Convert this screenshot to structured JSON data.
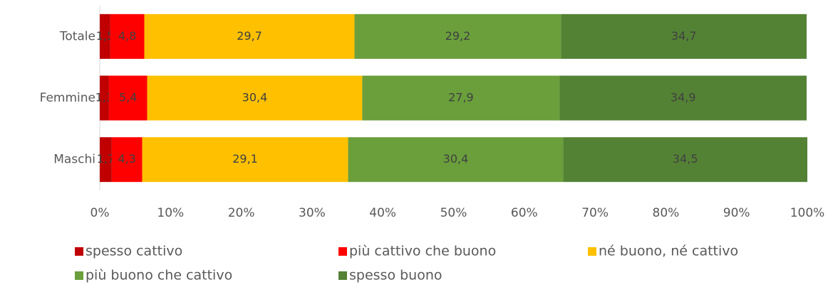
{
  "chart_data": {
    "type": "stacked_barh",
    "categories": [
      "Totale",
      "Femmine",
      "Maschi"
    ],
    "series": [
      {
        "name": "spesso cattivo",
        "color": "#c00000",
        "values": [
          1.5,
          1.3,
          1.7
        ],
        "value_labels": [
          "1,5",
          "1,3",
          "1,7"
        ]
      },
      {
        "name": "più cattivo che buono",
        "color": "#ff0000",
        "values": [
          4.8,
          5.4,
          4.3
        ],
        "value_labels": [
          "4,8",
          "5,4",
          "4,3"
        ]
      },
      {
        "name": "né buono, né cattivo",
        "color": "#ffc000",
        "values": [
          29.7,
          30.4,
          29.1
        ],
        "value_labels": [
          "29,7",
          "30,4",
          "29,1"
        ]
      },
      {
        "name": "più buono che cattivo",
        "color": "#6a9f3c",
        "values": [
          29.2,
          27.9,
          30.4
        ],
        "value_labels": [
          "29,2",
          "27,9",
          "30,4"
        ]
      },
      {
        "name": "spesso buono",
        "color": "#548235",
        "values": [
          34.7,
          34.9,
          34.5
        ],
        "value_labels": [
          "34,7",
          "34,9",
          "34,5"
        ]
      }
    ],
    "xlim": [
      0,
      100
    ],
    "xticks": [
      {
        "value": 0,
        "label": "0%"
      },
      {
        "value": 10,
        "label": "10%"
      },
      {
        "value": 20,
        "label": "20%"
      },
      {
        "value": 30,
        "label": "30%"
      },
      {
        "value": 40,
        "label": "40%"
      },
      {
        "value": 50,
        "label": "50%"
      },
      {
        "value": 60,
        "label": "60%"
      },
      {
        "value": 70,
        "label": "70%"
      },
      {
        "value": 80,
        "label": "80%"
      },
      {
        "value": 90,
        "label": "90%"
      },
      {
        "value": 100,
        "label": "100%"
      }
    ],
    "legend": "bottom"
  }
}
